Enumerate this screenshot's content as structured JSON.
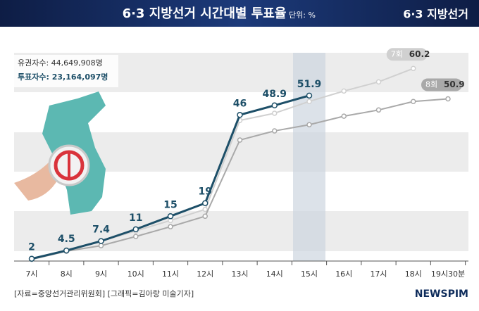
{
  "header": {
    "title": "6·3 지방선거 시간대별 투표율",
    "unit": "단위: %",
    "logo": "6·3 지방선거"
  },
  "info": {
    "voters": "유권자수: 44,649,908명",
    "turnout": "투표자수: 23,164,097명"
  },
  "chart_data": {
    "type": "line",
    "categories": [
      "7시",
      "8시",
      "9시",
      "10시",
      "11시",
      "12시",
      "13시",
      "14시",
      "15시",
      "16시",
      "17시",
      "18시",
      "19시30분"
    ],
    "series": [
      {
        "name": "7회",
        "color": "#d0d0d0",
        "values": [
          2.0,
          4.7,
          7.3,
          10.5,
          13.7,
          17.1,
          44.3,
          46.5,
          50.1,
          53.3,
          56.1,
          60.2,
          null
        ]
      },
      {
        "name": "8회",
        "color": "#a9a9a9",
        "values": [
          1.8,
          4.3,
          6.0,
          8.8,
          11.8,
          15.0,
          38.3,
          41.1,
          43.0,
          45.6,
          47.5,
          50.1,
          50.9
        ]
      },
      {
        "color": "#1d4f68",
        "values": [
          2.0,
          4.5,
          7.4,
          11.0,
          15.0,
          19.0,
          46.0,
          48.9,
          51.9,
          null,
          null,
          null,
          null
        ]
      }
    ],
    "ylim": [
      0,
      65
    ]
  },
  "footer": {
    "source": "[자료=중앙선거관리위원회] [그래픽=김아랑 미술기자]",
    "brand": "NEWSPIM"
  }
}
